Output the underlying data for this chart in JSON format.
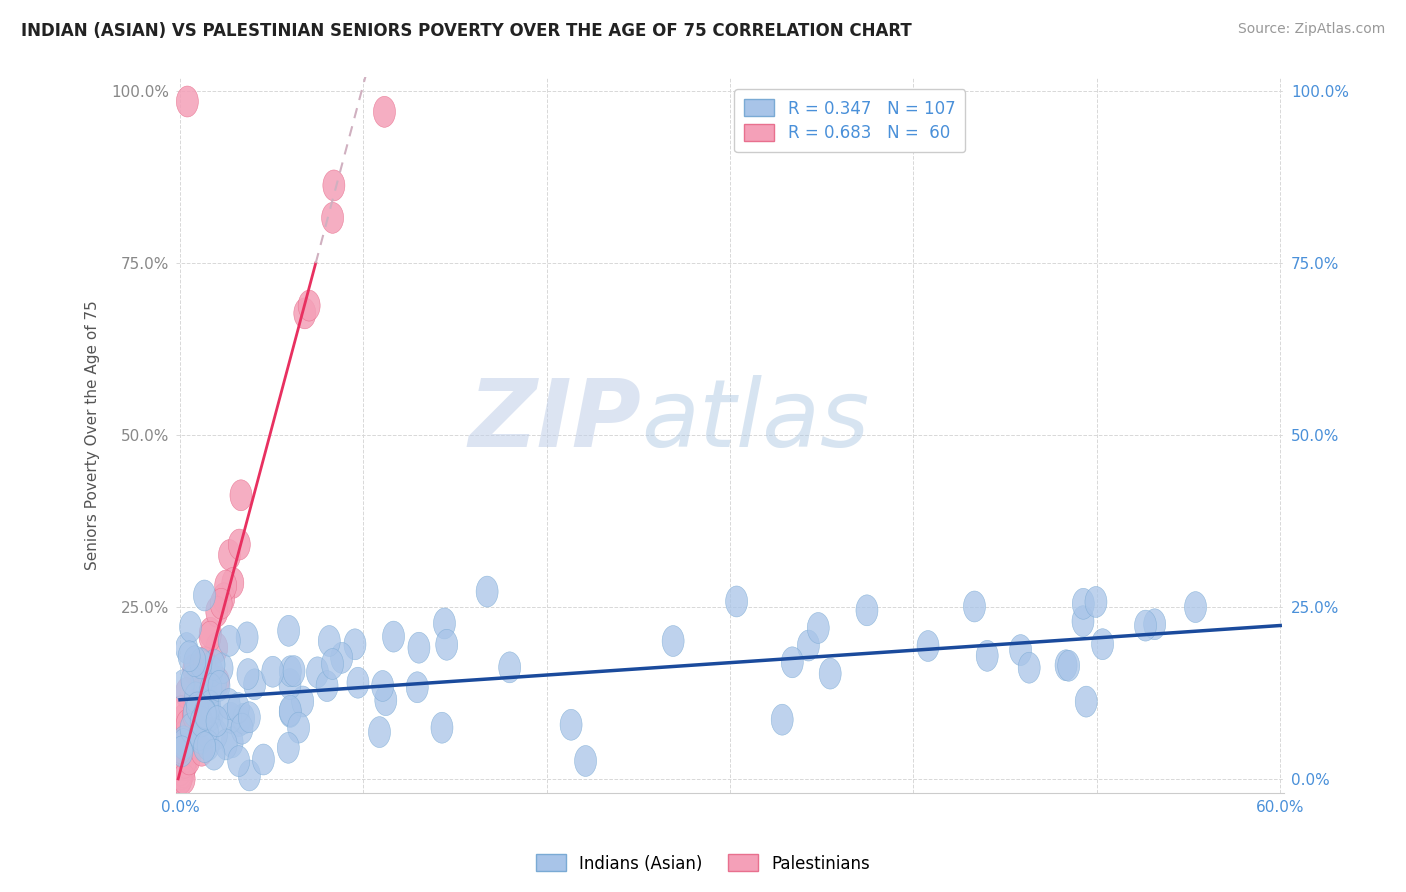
{
  "title": "INDIAN (ASIAN) VS PALESTINIAN SENIORS POVERTY OVER THE AGE OF 75 CORRELATION CHART",
  "source": "Source: ZipAtlas.com",
  "ylabel": "Seniors Poverty Over the Age of 75",
  "xlim": [
    -0.002,
    0.602
  ],
  "ylim": [
    -0.02,
    1.02
  ],
  "xticks": [
    0.0,
    0.1,
    0.2,
    0.3,
    0.4,
    0.5,
    0.6
  ],
  "xticklabels_show": [
    "0.0%",
    "",
    "",
    "",
    "",
    "",
    "60.0%"
  ],
  "yticks": [
    0.0,
    0.25,
    0.5,
    0.75,
    1.0
  ],
  "yticklabels_left": [
    "",
    "25.0%",
    "50.0%",
    "75.0%",
    "100.0%"
  ],
  "yticklabels_right": [
    "0.0%",
    "25.0%",
    "50.0%",
    "75.0%",
    "100.0%"
  ],
  "indian_color": "#a8c4e8",
  "indian_edge_color": "#7aaad4",
  "palestinian_color": "#f4a0b8",
  "palestinian_edge_color": "#e8708e",
  "trend_indian_color": "#1a4a9c",
  "trend_pal_color": "#e83060",
  "trend_pal_ext_color": "#d0b0c0",
  "indian_R": 0.347,
  "indian_N": 107,
  "palestinian_R": 0.683,
  "palestinian_N": 60,
  "legend_label_indian": "Indians (Asian)",
  "legend_label_palestinian": "Palestinians",
  "watermark_zip": "ZIP",
  "watermark_atlas": "atlas",
  "background_color": "#ffffff",
  "grid_color": "#d8d8d8",
  "title_color": "#222222",
  "source_color": "#999999",
  "ylabel_color": "#555555",
  "left_tick_color": "#888888",
  "right_tick_color": "#4a90d9",
  "bottom_tick_color": "#4a90d9",
  "trend_indian_slope": 0.18,
  "trend_indian_intercept": 0.115,
  "trend_pal_slope": 10.0,
  "trend_pal_intercept": 0.01,
  "trend_pal_x_start": -0.001,
  "trend_pal_x_end": 0.074,
  "trend_pal_ext_x_start": 0.074,
  "trend_pal_ext_x_end": 0.22
}
